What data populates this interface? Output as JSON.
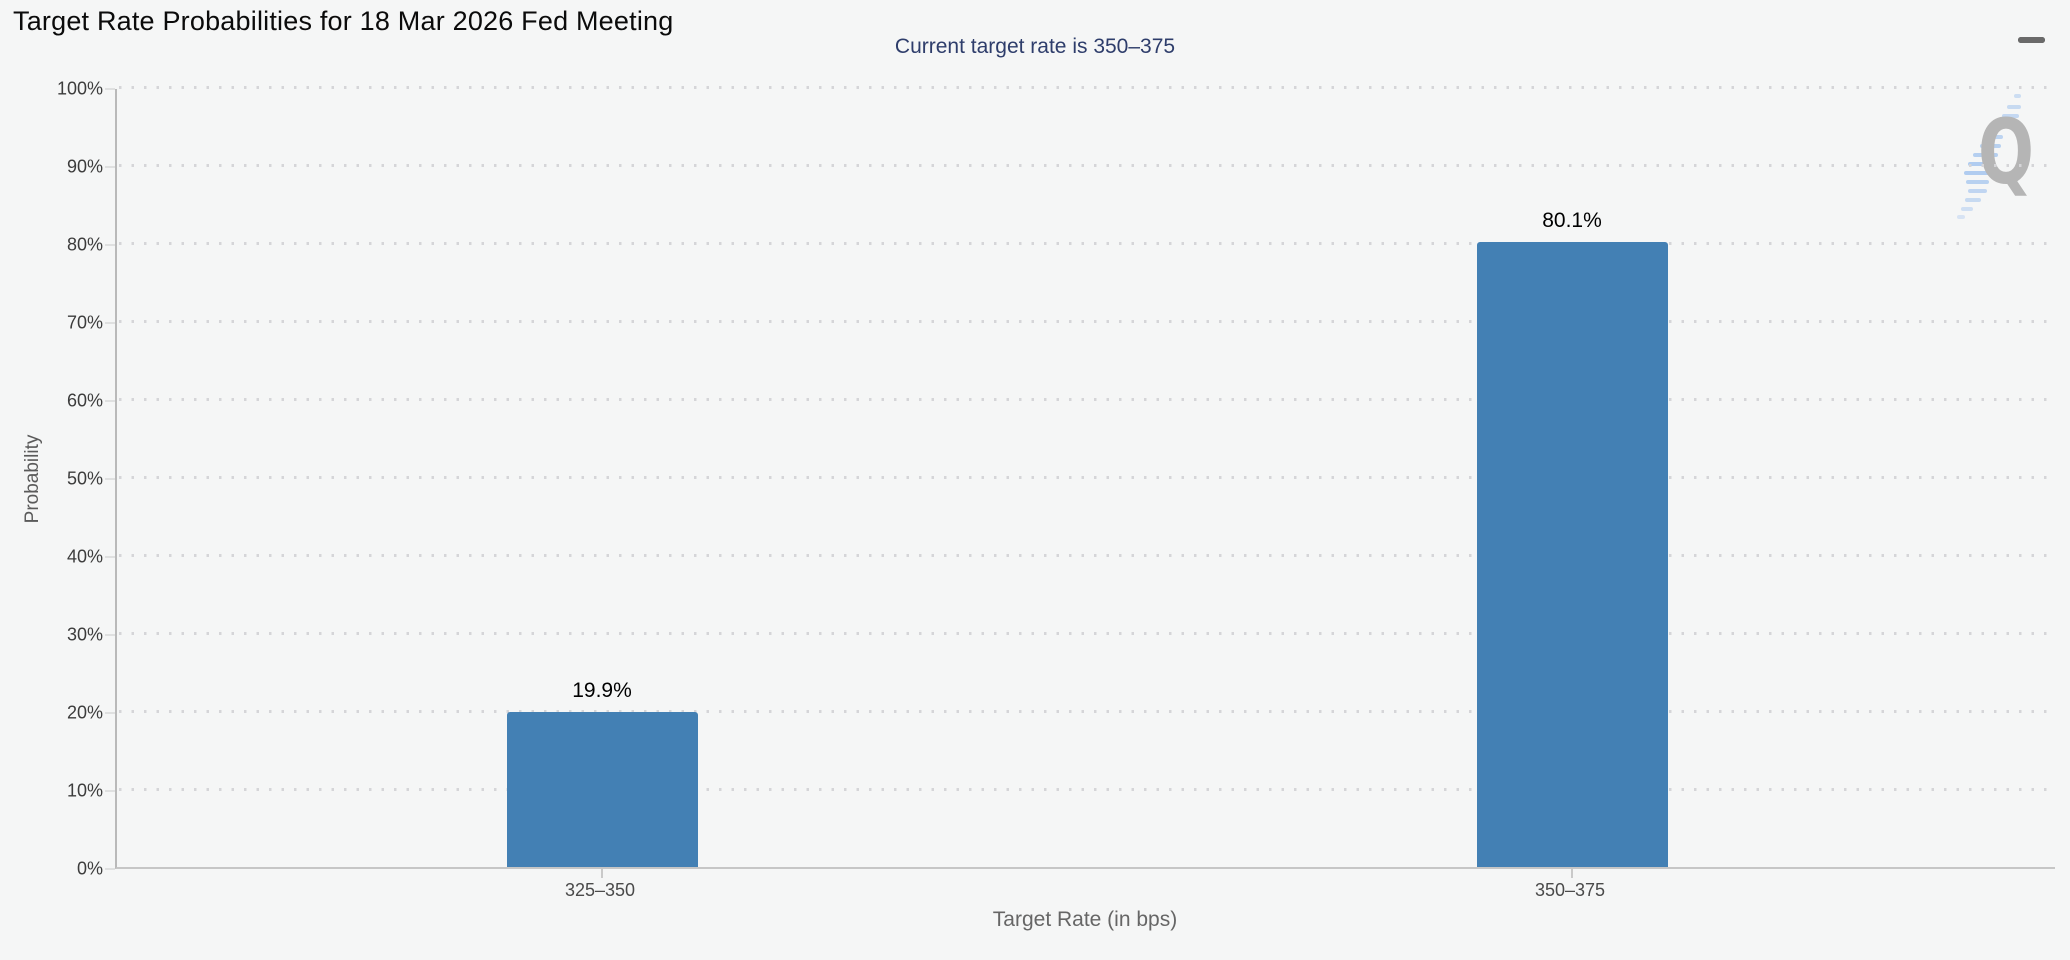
{
  "header": {
    "title": "Target Rate Probabilities for 18 Mar 2026 Fed Meeting",
    "menu_icon": "hamburger-icon"
  },
  "subtitle": "Current target rate is 350–375",
  "watermark": {
    "letter": "Q"
  },
  "colors": {
    "background": "#f5f6f6",
    "bar": "#4380b4",
    "subtitle_text": "#2e3d6b",
    "grid_dot": "#d5d5d8",
    "axis_line": "#c6c6c6",
    "watermark_gray": "#b5b5b5",
    "watermark_blue": "#a6c6ef"
  },
  "chart_data": {
    "type": "bar",
    "title": "Target Rate Probabilities for 18 Mar 2026 Fed Meeting",
    "subtitle": "Current target rate is 350–375",
    "categories": [
      "325–350",
      "350–375"
    ],
    "values": [
      19.9,
      80.1
    ],
    "value_labels": [
      "19.9%",
      "80.1%"
    ],
    "xlabel": "Target Rate (in bps)",
    "ylabel": "Probability",
    "ylim": [
      0,
      100
    ],
    "ytick_step": 10,
    "ytick_labels": [
      "0%",
      "10%",
      "20%",
      "30%",
      "40%",
      "50%",
      "60%",
      "70%",
      "80%",
      "90%",
      "100%"
    ],
    "grid": "horizontal-dotted",
    "legend": "none",
    "bar_color": "#4380b4"
  }
}
